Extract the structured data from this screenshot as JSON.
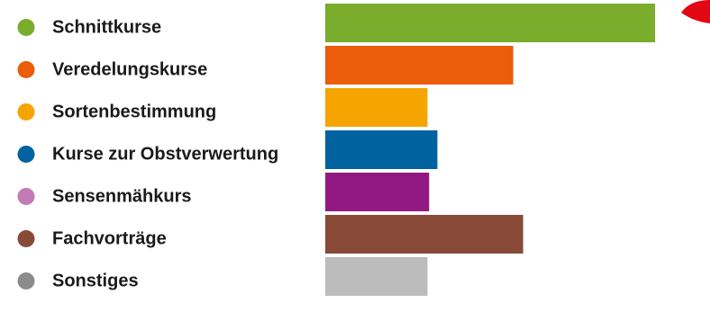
{
  "chart_data": {
    "type": "bar",
    "orientation": "horizontal",
    "title": "",
    "xlabel": "",
    "ylabel": "",
    "grid": false,
    "legend": "left",
    "xlim": [
      0,
      100
    ],
    "categories": [
      "Schnittkurse",
      "Veredelungskurse",
      "Sortenbestimmung",
      "Kurse zur Obstverwertung",
      "Sensenmähkurs",
      "Fachvorträge",
      "Sonstiges"
    ],
    "values": [
      100,
      57,
      31,
      34,
      31.5,
      60,
      31
    ],
    "colors": [
      "#7aad2c",
      "#eb5d0b",
      "#f5a400",
      "#00639f",
      "#921982",
      "#894a38",
      "#bcbcbc"
    ],
    "legend_marker_colors": [
      "#7aad2c",
      "#eb5d0b",
      "#f5a400",
      "#00639f",
      "#c27bb7",
      "#894a38",
      "#8c8c8c"
    ]
  }
}
